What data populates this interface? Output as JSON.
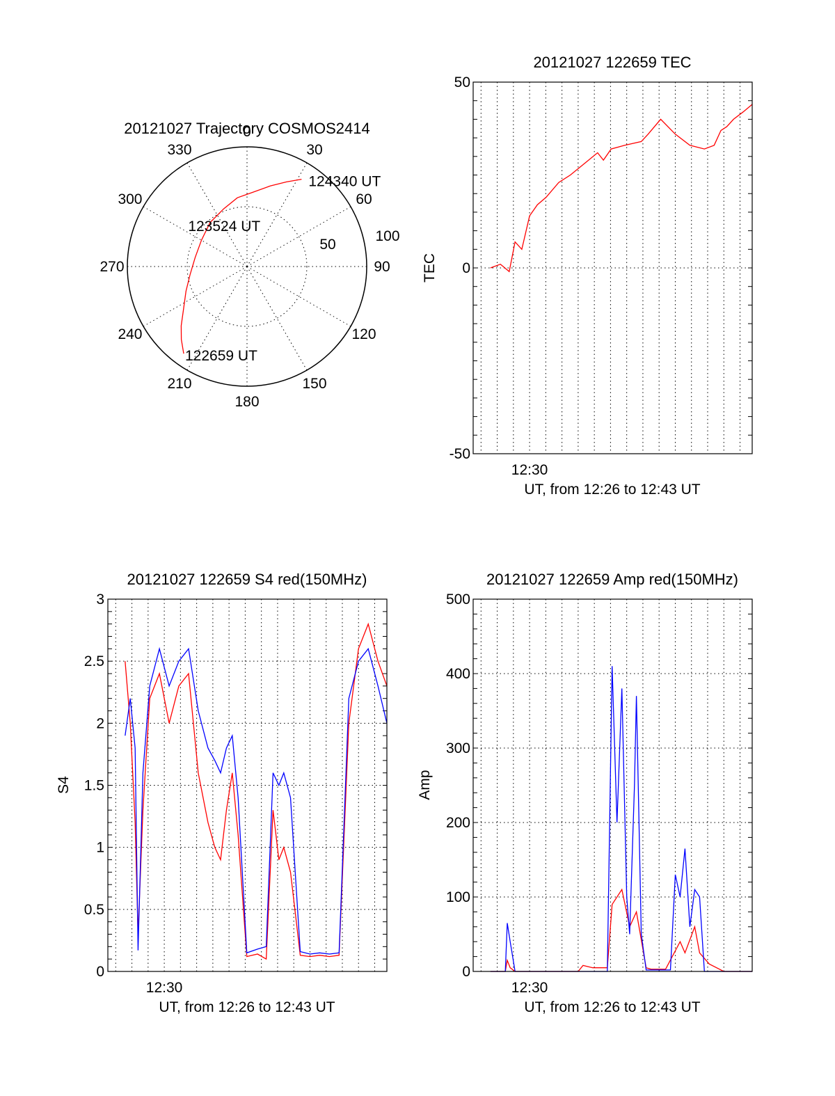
{
  "chart_data": [
    {
      "id": "polar",
      "type": "polar-trajectory",
      "title": "20121027 Trajectory COSMOS2414",
      "azimuth_labels": [
        "0",
        "30",
        "60",
        "90",
        "120",
        "150",
        "180",
        "210",
        "240",
        "270",
        "300",
        "330"
      ],
      "radial_labels": [
        "50",
        "100"
      ],
      "rmax": 100,
      "series_color": "#ff0000",
      "trajectory": [
        {
          "az": 216,
          "zenith": 90
        },
        {
          "az": 222,
          "zenith": 82
        },
        {
          "az": 228,
          "zenith": 74
        },
        {
          "az": 236,
          "zenith": 64
        },
        {
          "az": 248,
          "zenith": 55
        },
        {
          "az": 262,
          "zenith": 48
        },
        {
          "az": 280,
          "zenith": 44
        },
        {
          "az": 300,
          "zenith": 44
        },
        {
          "az": 320,
          "zenith": 48
        },
        {
          "az": 338,
          "zenith": 52
        },
        {
          "az": 352,
          "zenith": 58
        },
        {
          "az": 4,
          "zenith": 62
        },
        {
          "az": 16,
          "zenith": 70
        },
        {
          "az": 25,
          "zenith": 78
        },
        {
          "az": 32,
          "zenith": 86
        }
      ],
      "annotations": [
        {
          "text": "122659 UT",
          "az": 216,
          "zenith": 90
        },
        {
          "text": "123524 UT",
          "az": 300,
          "zenith": 30
        },
        {
          "text": "124340 UT",
          "az": 32,
          "zenith": 86
        }
      ]
    },
    {
      "id": "tec",
      "type": "line",
      "title": "20121027 122659 TEC",
      "ylabel": "TEC",
      "xlabel": "UT, from 12:26 to 12:43 UT",
      "ylim": [
        -50,
        50
      ],
      "yticks": [
        "-50",
        "0",
        "50"
      ],
      "xlim": [
        12.4419,
        12.7292
      ],
      "xtick_label": "12:30",
      "xtick_value": 12.5,
      "grid": "vertical dotted every minute, horizontal dotted at 0",
      "series": [
        {
          "color": "#ff0000",
          "x": [
            12.4597,
            12.47,
            12.479,
            12.485,
            12.492,
            12.5,
            12.508,
            12.517,
            12.53,
            12.542,
            12.556,
            12.57,
            12.576,
            12.584,
            12.598,
            12.615,
            12.622,
            12.635,
            12.65,
            12.665,
            12.68,
            12.69,
            12.697,
            12.703,
            12.71,
            12.72,
            12.7292
          ],
          "y": [
            0,
            1,
            -1,
            7,
            5,
            14,
            17,
            19,
            23,
            25,
            28,
            31,
            29,
            32,
            33,
            34,
            36,
            40,
            36,
            33,
            32,
            33,
            37,
            38,
            40,
            42,
            44
          ]
        }
      ]
    },
    {
      "id": "s4",
      "type": "line",
      "title": "20121027 122659 S4 red(150MHz)",
      "ylabel": "S4",
      "xlabel": "UT, from 12:26 to 12:43 UT",
      "ylim": [
        0,
        3
      ],
      "yticks": [
        "0",
        "0.5",
        "1",
        "1.5",
        "2",
        "2.5",
        "3"
      ],
      "xlim": [
        12.4419,
        12.7292
      ],
      "xtick_label": "12:30",
      "xtick_value": 12.5,
      "grid": "dotted both axes",
      "series": [
        {
          "color": "#ff0000",
          "x": [
            12.4597,
            12.465,
            12.47,
            12.473,
            12.478,
            12.485,
            12.495,
            12.505,
            12.515,
            12.525,
            12.535,
            12.545,
            12.552,
            12.558,
            12.564,
            12.57,
            12.576,
            12.585,
            12.596,
            12.605,
            12.612,
            12.618,
            12.623,
            12.63,
            12.64,
            12.65,
            12.66,
            12.67,
            12.68,
            12.69,
            12.7,
            12.71,
            12.72,
            12.7292
          ],
          "y": [
            2.5,
            2.0,
            1.2,
            0.3,
            1.3,
            2.2,
            2.4,
            2.0,
            2.3,
            2.4,
            1.6,
            1.2,
            1.0,
            0.9,
            1.3,
            1.6,
            1.1,
            0.12,
            0.14,
            0.1,
            1.3,
            0.9,
            1.0,
            0.8,
            0.13,
            0.12,
            0.13,
            0.12,
            0.13,
            2.0,
            2.6,
            2.8,
            2.5,
            2.3
          ]
        },
        {
          "color": "#0000ff",
          "x": [
            12.4597,
            12.465,
            12.47,
            12.473,
            12.478,
            12.485,
            12.495,
            12.505,
            12.515,
            12.525,
            12.535,
            12.545,
            12.552,
            12.558,
            12.564,
            12.57,
            12.576,
            12.585,
            12.596,
            12.605,
            12.612,
            12.618,
            12.623,
            12.63,
            12.64,
            12.65,
            12.66,
            12.67,
            12.68,
            12.69,
            12.7,
            12.71,
            12.72,
            12.7292
          ],
          "y": [
            1.9,
            2.2,
            1.8,
            0.17,
            1.6,
            2.3,
            2.6,
            2.3,
            2.5,
            2.6,
            2.1,
            1.8,
            1.7,
            1.6,
            1.8,
            1.9,
            1.4,
            0.15,
            0.18,
            0.2,
            1.6,
            1.5,
            1.6,
            1.4,
            0.16,
            0.14,
            0.15,
            0.14,
            0.15,
            2.2,
            2.5,
            2.6,
            2.3,
            2.0
          ]
        }
      ]
    },
    {
      "id": "amp",
      "type": "line",
      "title": "20121027 122659 Amp red(150MHz)",
      "ylabel": "Amp",
      "xlabel": "UT, from 12:26 to 12:43 UT",
      "ylim": [
        0,
        500
      ],
      "yticks": [
        "0",
        "100",
        "200",
        "300",
        "400",
        "500"
      ],
      "xlim": [
        12.4419,
        12.7292
      ],
      "xtick_label": "12:30",
      "xtick_value": 12.5,
      "grid": "dotted both axes",
      "series": [
        {
          "color": "#ff0000",
          "x": [
            12.4597,
            12.475,
            12.477,
            12.48,
            12.485,
            12.52,
            12.55,
            12.555,
            12.565,
            12.58,
            12.585,
            12.595,
            12.603,
            12.61,
            12.62,
            12.625,
            12.63,
            12.64,
            12.655,
            12.66,
            12.67,
            12.675,
            12.685,
            12.7,
            12.7292
          ],
          "y": [
            0,
            0,
            15,
            5,
            0,
            0,
            0,
            8,
            5,
            5,
            90,
            110,
            60,
            80,
            5,
            3,
            3,
            3,
            40,
            25,
            60,
            25,
            10,
            0,
            0
          ]
        },
        {
          "color": "#0000ff",
          "x": [
            12.4597,
            12.475,
            12.477,
            12.48,
            12.485,
            12.52,
            12.55,
            12.575,
            12.58,
            12.585,
            12.59,
            12.595,
            12.6,
            12.603,
            12.608,
            12.61,
            12.615,
            12.62,
            12.625,
            12.63,
            12.635,
            12.64,
            12.645,
            12.65,
            12.655,
            12.66,
            12.665,
            12.67,
            12.675,
            12.68,
            12.685,
            12.7,
            12.7292
          ],
          "y": [
            0,
            0,
            65,
            40,
            0,
            0,
            0,
            0,
            0,
            410,
            200,
            380,
            100,
            50,
            250,
            370,
            50,
            2,
            2,
            2,
            2,
            2,
            2,
            130,
            100,
            165,
            60,
            110,
            100,
            0,
            0,
            0,
            0
          ]
        }
      ]
    }
  ]
}
